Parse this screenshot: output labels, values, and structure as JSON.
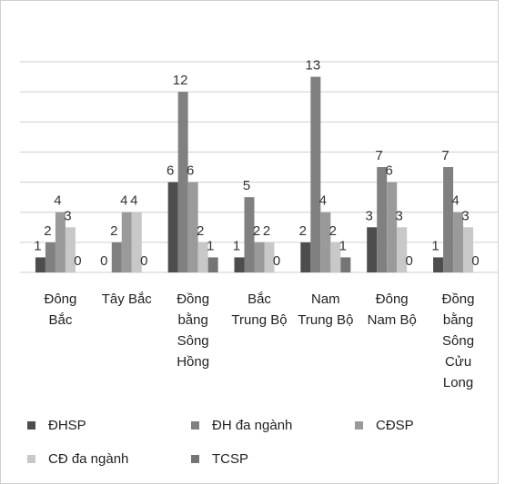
{
  "chart_data": {
    "type": "bar",
    "categories": [
      "Đông Bắc",
      "Tây Bắc",
      "Đồng bằng Sông Hồng",
      "Bắc Trung Bộ",
      "Nam Trung Bộ",
      "Đông Nam Bộ",
      "Đồng bằng Sông Cửu Long"
    ],
    "series": [
      {
        "name": "ĐHSP",
        "color": "#4d4d4d",
        "values": [
          1,
          0,
          6,
          1,
          2,
          3,
          1
        ]
      },
      {
        "name": "ĐH đa ngành",
        "color": "#808080",
        "values": [
          2,
          2,
          12,
          5,
          13,
          7,
          7
        ]
      },
      {
        "name": "CĐSP",
        "color": "#9a9a9a",
        "values": [
          4,
          4,
          6,
          2,
          4,
          6,
          4
        ]
      },
      {
        "name": "CĐ đa ngành",
        "color": "#c8c8c8",
        "values": [
          3,
          4,
          2,
          2,
          2,
          3,
          3
        ]
      },
      {
        "name": "TCSP",
        "color": "#757575",
        "values": [
          0,
          0,
          1,
          0,
          1,
          0,
          0
        ]
      }
    ],
    "ylim": [
      0,
      14
    ],
    "yticks": [
      0,
      2,
      4,
      6,
      8,
      10,
      12,
      14
    ],
    "grid": true
  }
}
